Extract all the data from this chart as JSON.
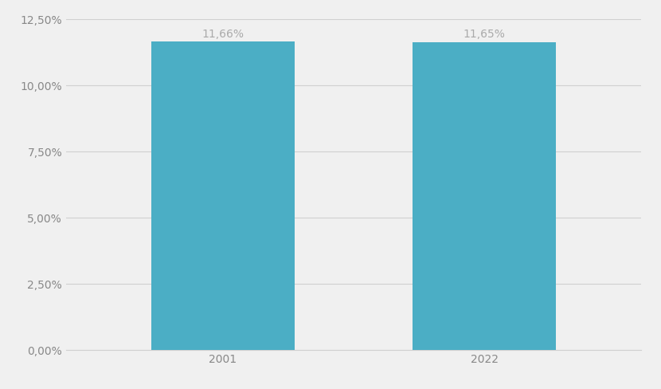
{
  "categories": [
    "2001",
    "2022"
  ],
  "values": [
    11.66,
    11.65
  ],
  "labels": [
    "11,66%",
    "11,65%"
  ],
  "bar_color": "#4BAEC5",
  "background_color": "#f0f0f0",
  "ylim": [
    0,
    12.5
  ],
  "yticks": [
    0,
    2.5,
    5.0,
    7.5,
    10.0,
    12.5
  ],
  "ytick_labels": [
    "0,00%",
    "2,50%",
    "5,00%",
    "7,50%",
    "10,00%",
    "12,50%"
  ],
  "grid_color": "#d0d0d0",
  "label_color": "#aaaaaa",
  "tick_color": "#888888",
  "bar_width": 0.55,
  "xlim": [
    -0.6,
    1.6
  ]
}
